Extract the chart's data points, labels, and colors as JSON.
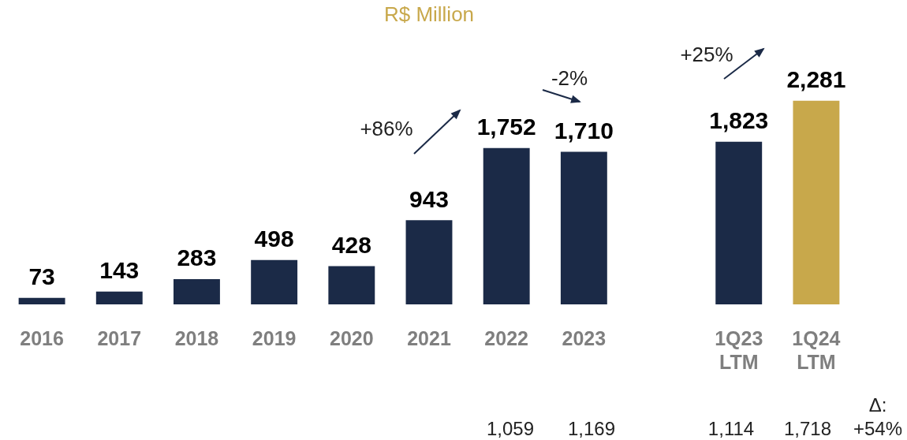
{
  "chart_data": {
    "type": "bar",
    "title": "R$ Million",
    "categories": [
      "2016",
      "2017",
      "2018",
      "2019",
      "2020",
      "2021",
      "2022",
      "2023",
      null,
      "1Q23\nLTM",
      "1Q24\nLTM"
    ],
    "values": [
      73,
      143,
      283,
      498,
      428,
      943,
      1752,
      1710,
      null,
      1823,
      2281
    ],
    "colors": [
      "#1b2a47",
      "#1b2a47",
      "#1b2a47",
      "#1b2a47",
      "#1b2a47",
      "#1b2a47",
      "#1b2a47",
      "#1b2a47",
      "#1b2a47",
      "#1b2a47",
      "#c8a84b"
    ],
    "value_labels": [
      "73",
      "143",
      "283",
      "498",
      "428",
      "943",
      "1,752",
      "1,710",
      null,
      "1,823",
      "2,281"
    ],
    "annotations": [
      "+86%",
      "-2%",
      "+25%",
      "1,059",
      "1,169",
      "1,114",
      "1,718",
      "Δ: +54%"
    ]
  }
}
